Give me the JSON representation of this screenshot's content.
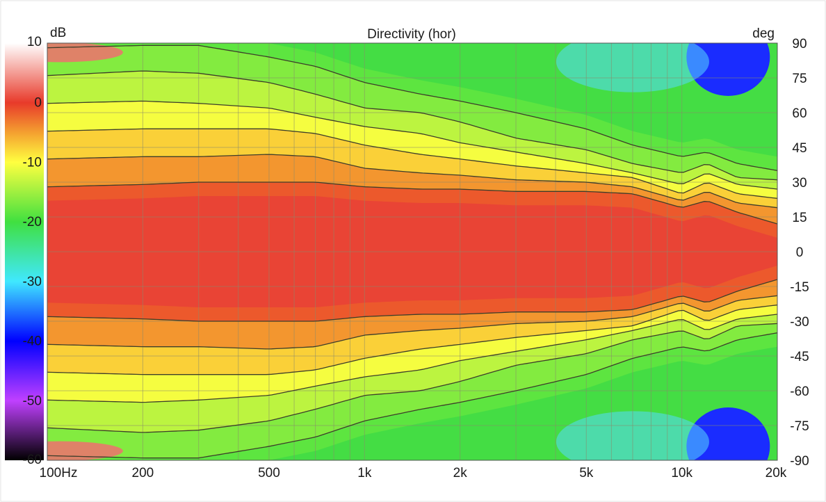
{
  "chart_data": {
    "type": "heatmap",
    "title": "Directivity (hor)",
    "colorbar_unit": "dB",
    "yaxis_unit": "deg",
    "x_scale": "log",
    "xlim": [
      100,
      20000
    ],
    "ylim": [
      -90,
      90
    ],
    "zlim": [
      -60,
      10
    ],
    "x_ticks": [
      {
        "value": 100,
        "label": "100Hz"
      },
      {
        "value": 200,
        "label": "200"
      },
      {
        "value": 500,
        "label": "500"
      },
      {
        "value": 1000,
        "label": "1k"
      },
      {
        "value": 2000,
        "label": "2k"
      },
      {
        "value": 5000,
        "label": "5k"
      },
      {
        "value": 10000,
        "label": "10k"
      },
      {
        "value": 20000,
        "label": "20k"
      }
    ],
    "y_ticks": [
      {
        "value": 90,
        "label": "90"
      },
      {
        "value": 75,
        "label": "75"
      },
      {
        "value": 60,
        "label": "60"
      },
      {
        "value": 45,
        "label": "45"
      },
      {
        "value": 30,
        "label": "30"
      },
      {
        "value": 15,
        "label": "15"
      },
      {
        "value": 0,
        "label": "0"
      },
      {
        "value": -15,
        "label": "-15"
      },
      {
        "value": -30,
        "label": "-30"
      },
      {
        "value": -45,
        "label": "-45"
      },
      {
        "value": -60,
        "label": "-60"
      },
      {
        "value": -75,
        "label": "-75"
      },
      {
        "value": -90,
        "label": "-90"
      }
    ],
    "colorbar_ticks": [
      {
        "value": 10,
        "label": "10"
      },
      {
        "value": 0,
        "label": "0"
      },
      {
        "value": -10,
        "label": "-10"
      },
      {
        "value": -20,
        "label": "-20"
      },
      {
        "value": -30,
        "label": "-30"
      },
      {
        "value": -40,
        "label": "-40"
      },
      {
        "value": -50,
        "label": "-50"
      },
      {
        "value": -60,
        "label": "-60"
      }
    ],
    "colorbar_stops": [
      {
        "value": 10,
        "color": "#ffffff"
      },
      {
        "value": 0,
        "color": "#e83a2a"
      },
      {
        "value": -5,
        "color": "#f4a030"
      },
      {
        "value": -10,
        "color": "#ffff40"
      },
      {
        "value": -20,
        "color": "#40e040"
      },
      {
        "value": -30,
        "color": "#40e8ff"
      },
      {
        "value": -40,
        "color": "#0000ff"
      },
      {
        "value": -50,
        "color": "#c040ff"
      },
      {
        "value": -60,
        "color": "#000000"
      }
    ],
    "contour_levels": [
      -3,
      -6,
      -9,
      -12,
      -15,
      -18
    ],
    "contour_half_angle_deg": {
      "freq_hz": [
        100,
        200,
        300,
        500,
        700,
        1000,
        1500,
        2000,
        3000,
        5000,
        7000,
        10000,
        12000,
        15000,
        20000
      ],
      "levels": [
        {
          "db": -3,
          "angle": [
            28,
            29,
            30,
            30,
            30,
            28,
            27,
            27,
            26,
            26,
            25,
            19,
            22,
            17,
            12
          ]
        },
        {
          "db": -6,
          "angle": [
            40,
            41,
            41,
            42,
            41,
            36,
            34,
            33,
            31,
            30,
            28,
            22,
            26,
            21,
            19
          ]
        },
        {
          "db": -9,
          "angle": [
            52,
            53,
            53,
            53,
            51,
            46,
            42,
            40,
            37,
            34,
            32,
            25,
            30,
            25,
            23
          ]
        },
        {
          "db": -12,
          "angle": [
            64,
            65,
            64,
            62,
            58,
            54,
            51,
            47,
            43,
            38,
            34,
            29,
            34,
            29,
            27
          ]
        },
        {
          "db": -15,
          "angle": [
            76,
            78,
            77,
            73,
            68,
            62,
            60,
            56,
            49,
            44,
            38,
            34,
            38,
            32,
            31
          ]
        },
        {
          "db": -18,
          "angle": [
            88,
            89,
            89,
            84,
            80,
            73,
            68,
            65,
            60,
            53,
            46,
            41,
            43,
            38,
            35
          ]
        }
      ]
    },
    "grid": true
  }
}
